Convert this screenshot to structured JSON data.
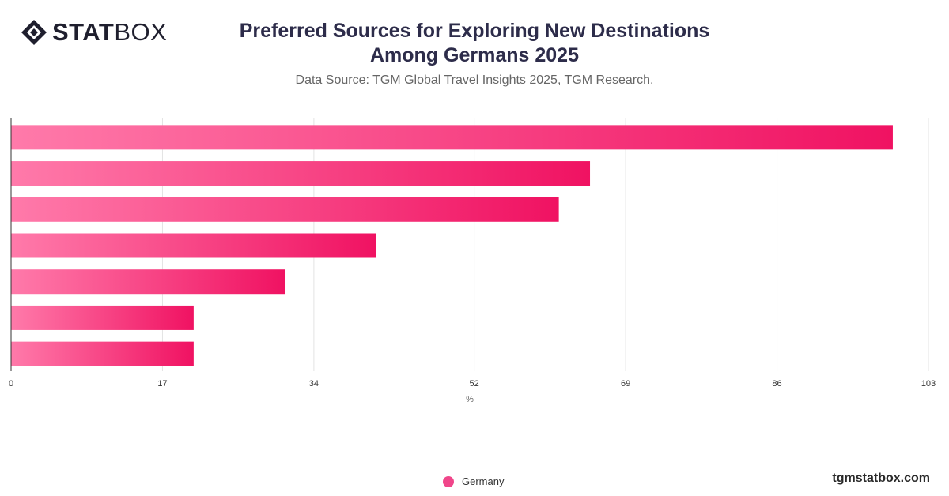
{
  "brand": {
    "logo_bold": "STAT",
    "logo_light": "BOX",
    "footer_url": "tgmstatbox.com"
  },
  "header": {
    "title_line1": "Preferred Sources for Exploring New Destinations",
    "title_line2": "Among Germans 2025",
    "subtitle": "Data Source: TGM Global Travel Insights 2025, TGM Research."
  },
  "colors": {
    "bar_start": "#ff7aaa",
    "bar_end": "#f01262",
    "legend": "#f0468a"
  },
  "chart_data": {
    "type": "bar",
    "orientation": "horizontal",
    "xlabel": "%",
    "ticks": [
      "0",
      "17",
      "34",
      "52",
      "69",
      "86",
      "103"
    ],
    "xlim": [
      0,
      103
    ],
    "grid": true,
    "legend_position": "bottom-center",
    "series": [
      {
        "name": "Germany",
        "values": [
          99,
          65,
          61.5,
          41,
          30.8,
          20.5,
          20.5
        ]
      }
    ]
  }
}
